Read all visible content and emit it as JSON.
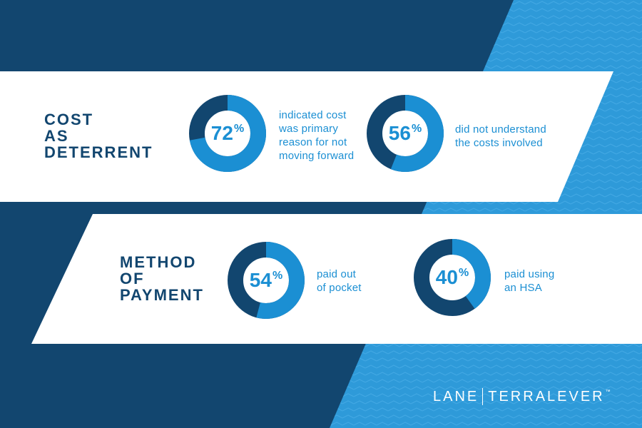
{
  "colors": {
    "background_dark": "#12466f",
    "background_light": "#2e9ad9",
    "band": "#ffffff",
    "ring_value": "#1b8fd3",
    "ring_remainder": "#12466f",
    "heading": "#12466f",
    "text_accent": "#1b8fd3"
  },
  "sections": [
    {
      "heading": [
        "COST",
        "AS",
        "DETERRENT"
      ],
      "stats": [
        {
          "value": 72,
          "number": "72",
          "unit": "%",
          "text": "indicated cost\nwas primary\nreason for not\nmoving forward"
        },
        {
          "value": 56,
          "number": "56",
          "unit": "%",
          "text": "did not understand\nthe costs involved"
        }
      ]
    },
    {
      "heading": [
        "METHOD",
        "OF",
        "PAYMENT"
      ],
      "stats": [
        {
          "value": 54,
          "number": "54",
          "unit": "%",
          "text": "paid out\nof pocket"
        },
        {
          "value": 40,
          "number": "40",
          "unit": "%",
          "text": "paid using\nan HSA"
        }
      ]
    }
  ],
  "chart_data": [
    {
      "type": "pie",
      "style": "donut",
      "group": "COST AS DETERRENT",
      "label": "indicated cost was primary reason for not moving forward",
      "value": 72,
      "remainder": 28,
      "unit": "%"
    },
    {
      "type": "pie",
      "style": "donut",
      "group": "COST AS DETERRENT",
      "label": "did not understand the costs involved",
      "value": 56,
      "remainder": 44,
      "unit": "%"
    },
    {
      "type": "pie",
      "style": "donut",
      "group": "METHOD OF PAYMENT",
      "label": "paid out of pocket",
      "value": 54,
      "remainder": 46,
      "unit": "%"
    },
    {
      "type": "pie",
      "style": "donut",
      "group": "METHOD OF PAYMENT",
      "label": "paid using an HSA",
      "value": 40,
      "remainder": 60,
      "unit": "%"
    }
  ],
  "logo": {
    "left": "LANE",
    "right": "TERRALEVER",
    "mark": "™"
  }
}
